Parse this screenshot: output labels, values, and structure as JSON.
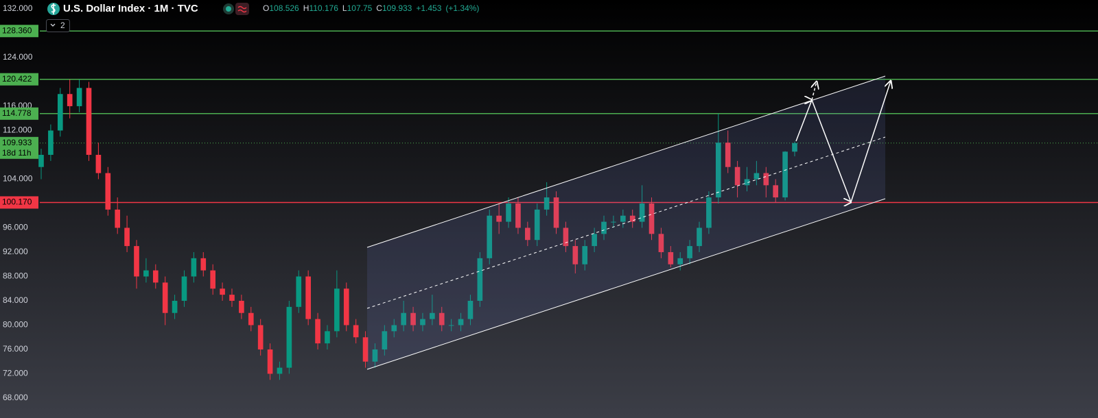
{
  "chart_data": {
    "type": "candlestick",
    "title": "U.S. Dollar Index · 1M · TVC",
    "interval_badge": "2",
    "quote": {
      "open_label": "O",
      "open": 108.526,
      "high_label": "H",
      "high": 110.176,
      "low_label": "L",
      "low": 107.75,
      "close_label": "C",
      "close": 109.933,
      "change": "+1.453",
      "change_pct": "(+1.34%)"
    },
    "up_color": "#089981",
    "down_color": "#f23645",
    "ylim": [
      64.73,
      133.46
    ],
    "yticks": [
      {
        "value": 132,
        "label": "132.000"
      },
      {
        "value": 124,
        "label": "124.000"
      },
      {
        "value": 116,
        "label": "116.000"
      },
      {
        "value": 112,
        "label": "112.000"
      },
      {
        "value": 104,
        "label": "104.000"
      },
      {
        "value": 96,
        "label": "96.000"
      },
      {
        "value": 92,
        "label": "92.000"
      },
      {
        "value": 88,
        "label": "88.000"
      },
      {
        "value": 84,
        "label": "84.000"
      },
      {
        "value": 80,
        "label": "80.000"
      },
      {
        "value": 76,
        "label": "76.000"
      },
      {
        "value": 72,
        "label": "72.000"
      },
      {
        "value": 68,
        "label": "68.000"
      }
    ],
    "levels": [
      {
        "value": 128.36,
        "label": "128.360",
        "color": "#4caf50"
      },
      {
        "value": 120.422,
        "label": "120.422",
        "color": "#4caf50"
      },
      {
        "value": 114.778,
        "label": "114.778",
        "color": "#4caf50"
      },
      {
        "value": 100.17,
        "label": "100.170",
        "color": "#f23645"
      }
    ],
    "last_price": {
      "value": 109.933,
      "label": "109.933",
      "countdown": "18d 11h",
      "color": "#4caf50"
    },
    "candles": [
      [
        106,
        109,
        104,
        108
      ],
      [
        108,
        113,
        107,
        112
      ],
      [
        112,
        119,
        111,
        118
      ],
      [
        118,
        120.4,
        114,
        116
      ],
      [
        116,
        120.4,
        115,
        119
      ],
      [
        119,
        120,
        107,
        108
      ],
      [
        108,
        110,
        104,
        105
      ],
      [
        105,
        106,
        98,
        99
      ],
      [
        99,
        101,
        95,
        96
      ],
      [
        96,
        98,
        92,
        93
      ],
      [
        93,
        94,
        86,
        88
      ],
      [
        88,
        91,
        87,
        89
      ],
      [
        89,
        90,
        86,
        87
      ],
      [
        87,
        88,
        80,
        82
      ],
      [
        82,
        85,
        81,
        84
      ],
      [
        84,
        89,
        83,
        88
      ],
      [
        88,
        92,
        87,
        91
      ],
      [
        91,
        92,
        88,
        89
      ],
      [
        89,
        90,
        85,
        86
      ],
      [
        86,
        87,
        84,
        85
      ],
      [
        85,
        86,
        83,
        84
      ],
      [
        84,
        85,
        81,
        82
      ],
      [
        82,
        83,
        79,
        80
      ],
      [
        80,
        81,
        75,
        76
      ],
      [
        76,
        77,
        71,
        72
      ],
      [
        72,
        74,
        71,
        73
      ],
      [
        73,
        84,
        72,
        83
      ],
      [
        83,
        89,
        82,
        88
      ],
      [
        88,
        89,
        80,
        81
      ],
      [
        81,
        82,
        76,
        77
      ],
      [
        77,
        80,
        76,
        79
      ],
      [
        79,
        89,
        78,
        86
      ],
      [
        86,
        87,
        79,
        80
      ],
      [
        80,
        81,
        77,
        78
      ],
      [
        78,
        79,
        73,
        74
      ],
      [
        74,
        77,
        73,
        76
      ],
      [
        76,
        80,
        75,
        79
      ],
      [
        79,
        81,
        78,
        80
      ],
      [
        80,
        84,
        79,
        82
      ],
      [
        82,
        83,
        79,
        80
      ],
      [
        80,
        82,
        79,
        81
      ],
      [
        81,
        85,
        80,
        82
      ],
      [
        82,
        83,
        79,
        80
      ],
      [
        80,
        81,
        79,
        80
      ],
      [
        80,
        82,
        79,
        81
      ],
      [
        81,
        85,
        80,
        84
      ],
      [
        84,
        92,
        83,
        91
      ],
      [
        91,
        99,
        90,
        98
      ],
      [
        98,
        100,
        95,
        97
      ],
      [
        97,
        101,
        96,
        100
      ],
      [
        100,
        101,
        95,
        96
      ],
      [
        96,
        97,
        93,
        94
      ],
      [
        94,
        100,
        93,
        99
      ],
      [
        99,
        103.5,
        98,
        101
      ],
      [
        101,
        102,
        95,
        96
      ],
      [
        96,
        97,
        92,
        93
      ],
      [
        93,
        94,
        88.5,
        90
      ],
      [
        90,
        94,
        89,
        93
      ],
      [
        93,
        96,
        92,
        95
      ],
      [
        95,
        98,
        94,
        97
      ],
      [
        97,
        98,
        96,
        97
      ],
      [
        97,
        99,
        96,
        98
      ],
      [
        98,
        99,
        96,
        97
      ],
      [
        97,
        103,
        96,
        100
      ],
      [
        100,
        101,
        94,
        95
      ],
      [
        95,
        96,
        91,
        92
      ],
      [
        92,
        93,
        89.5,
        90
      ],
      [
        90,
        92,
        89,
        91
      ],
      [
        91,
        94,
        90,
        93
      ],
      [
        93,
        97,
        92,
        96
      ],
      [
        96,
        102,
        95,
        101
      ],
      [
        101,
        114.8,
        100,
        110
      ],
      [
        110,
        112,
        105,
        106
      ],
      [
        106,
        107,
        101,
        103
      ],
      [
        103,
        106,
        102,
        104
      ],
      [
        104,
        107,
        103,
        105
      ],
      [
        105,
        106,
        101,
        103
      ],
      [
        103,
        104,
        100.2,
        101
      ],
      [
        101,
        108.6,
        100.5,
        108.526
      ],
      [
        108.526,
        110.176,
        107.75,
        109.933
      ]
    ]
  }
}
